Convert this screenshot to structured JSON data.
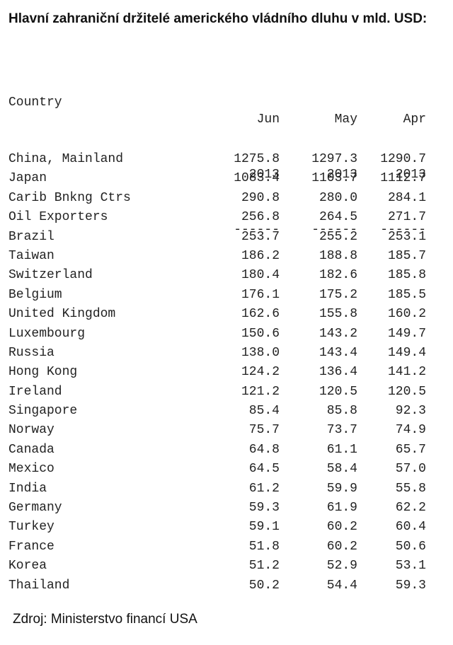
{
  "title": "Hlavní zahraniční držitelé amerického vládního dluhu v mld. USD:",
  "table": {
    "country_header": "Country",
    "columns": [
      {
        "month": "Jun",
        "year": "2013",
        "rule": "------"
      },
      {
        "month": "May",
        "year": "2013",
        "rule": "------"
      },
      {
        "month": "Apr",
        "year": "2013",
        "rule": "------"
      }
    ],
    "rows": [
      {
        "country": "China, Mainland",
        "values": [
          "1275.8",
          "1297.3",
          "1290.7"
        ]
      },
      {
        "country": "Japan",
        "values": [
          "1083.4",
          "1103.7",
          "1112.7"
        ]
      },
      {
        "country": "Carib Bnkng Ctrs",
        "values": [
          "290.8",
          "280.0",
          "284.1"
        ]
      },
      {
        "country": "Oil Exporters",
        "values": [
          "256.8",
          "264.5",
          "271.7"
        ]
      },
      {
        "country": "Brazil",
        "values": [
          "253.7",
          "255.2",
          "253.1"
        ]
      },
      {
        "country": "Taiwan",
        "values": [
          "186.2",
          "188.8",
          "185.7"
        ]
      },
      {
        "country": "Switzerland",
        "values": [
          "180.4",
          "182.6",
          "185.8"
        ]
      },
      {
        "country": "Belgium",
        "values": [
          "176.1",
          "175.2",
          "185.5"
        ]
      },
      {
        "country": "United Kingdom",
        "values": [
          "162.6",
          "155.8",
          "160.2"
        ]
      },
      {
        "country": "Luxembourg",
        "values": [
          "150.6",
          "143.2",
          "149.7"
        ]
      },
      {
        "country": "Russia",
        "values": [
          "138.0",
          "143.4",
          "149.4"
        ]
      },
      {
        "country": "Hong Kong",
        "values": [
          "124.2",
          "136.4",
          "141.2"
        ]
      },
      {
        "country": "Ireland",
        "values": [
          "121.2",
          "120.5",
          "120.5"
        ]
      },
      {
        "country": "Singapore",
        "values": [
          "85.4",
          "85.8",
          "92.3"
        ]
      },
      {
        "country": "Norway",
        "values": [
          "75.7",
          "73.7",
          "74.9"
        ]
      },
      {
        "country": "Canada",
        "values": [
          "64.8",
          "61.1",
          "65.7"
        ]
      },
      {
        "country": "Mexico",
        "values": [
          "64.5",
          "58.4",
          "57.0"
        ]
      },
      {
        "country": "India",
        "values": [
          "61.2",
          "59.9",
          "55.8"
        ]
      },
      {
        "country": "Germany",
        "values": [
          "59.3",
          "61.9",
          "62.2"
        ]
      },
      {
        "country": "Turkey",
        "values": [
          "59.1",
          "60.2",
          "60.4"
        ]
      },
      {
        "country": "France",
        "values": [
          "51.8",
          "60.2",
          "50.6"
        ]
      },
      {
        "country": "Korea",
        "values": [
          "51.2",
          "52.9",
          "53.1"
        ]
      },
      {
        "country": "Thailand",
        "values": [
          "50.2",
          "54.4",
          "59.3"
        ]
      }
    ]
  },
  "source": "Zdroj: Ministerstvo financí USA"
}
